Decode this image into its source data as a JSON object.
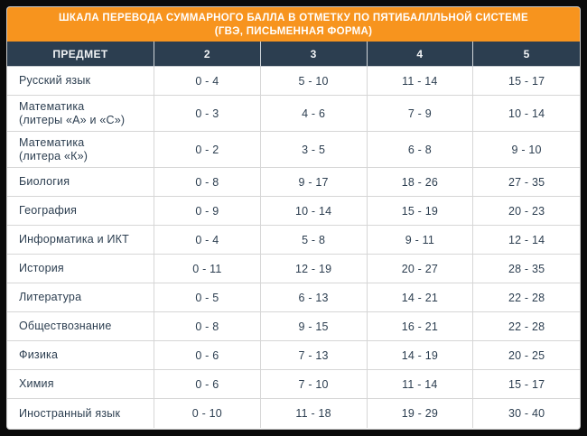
{
  "banner": {
    "line1": "ШКАЛА ПЕРЕВОДА СУММАРНОГО БАЛЛА В ОТМЕТКУ ПО ПЯТИБАЛЛЛЬНОЙ СИСТЕМЕ",
    "line2": "(ГВЭ, ПИСЬМЕННАЯ ФОРМА)"
  },
  "colors": {
    "banner_bg": "#F7941E",
    "header_bg": "#2C3E50",
    "body_text": "#2C3E50",
    "divider": "#D6D6D6",
    "frame": "#0B0B0B",
    "row_bg": "#FFFFFF"
  },
  "table": {
    "columns": [
      "ПРЕДМЕТ",
      "2",
      "3",
      "4",
      "5"
    ],
    "rows": [
      {
        "subject_lines": [
          "Русский язык"
        ],
        "scores": [
          "0 - 4",
          "5 - 10",
          "11 - 14",
          "15 - 17"
        ]
      },
      {
        "subject_lines": [
          "Математика",
          "(литеры «А» и «С»)"
        ],
        "scores": [
          "0 - 3",
          "4 - 6",
          "7 - 9",
          "10 - 14"
        ]
      },
      {
        "subject_lines": [
          "Математика",
          "(литера «К»)"
        ],
        "scores": [
          "0 - 2",
          "3 - 5",
          "6 - 8",
          "9 - 10"
        ]
      },
      {
        "subject_lines": [
          "Биология"
        ],
        "scores": [
          "0 - 8",
          "9 - 17",
          "18 - 26",
          "27 - 35"
        ]
      },
      {
        "subject_lines": [
          "География"
        ],
        "scores": [
          "0 - 9",
          "10 - 14",
          "15 - 19",
          "20 - 23"
        ]
      },
      {
        "subject_lines": [
          "Информатика и ИКТ"
        ],
        "scores": [
          "0 - 4",
          "5 - 8",
          "9 - 11",
          "12 - 14"
        ]
      },
      {
        "subject_lines": [
          "История"
        ],
        "scores": [
          "0 - 11",
          "12 - 19",
          "20 - 27",
          "28 - 35"
        ]
      },
      {
        "subject_lines": [
          "Литература"
        ],
        "scores": [
          "0 - 5",
          "6 - 13",
          "14 - 21",
          "22 - 28"
        ]
      },
      {
        "subject_lines": [
          "Обществознание"
        ],
        "scores": [
          "0 - 8",
          "9 - 15",
          "16 - 21",
          "22 - 28"
        ]
      },
      {
        "subject_lines": [
          "Физика"
        ],
        "scores": [
          "0 - 6",
          "7 - 13",
          "14 - 19",
          "20 - 25"
        ]
      },
      {
        "subject_lines": [
          "Химия"
        ],
        "scores": [
          "0 - 6",
          "7 - 10",
          "11 - 14",
          "15 - 17"
        ]
      },
      {
        "subject_lines": [
          "Иностранный язык"
        ],
        "scores": [
          "0 - 10",
          "11 - 18",
          "19 - 29",
          "30 - 40"
        ]
      }
    ]
  },
  "chart_data": {
    "type": "table",
    "title": "ШКАЛА ПЕРЕВОДА СУММАРНОГО БАЛЛА В ОТМЕТКУ ПО ПЯТИБАЛЛЛЬНОЙ СИСТЕМЕ (ГВЭ, ПИСЬМЕННАЯ ФОРМА)",
    "columns": [
      "ПРЕДМЕТ",
      "2",
      "3",
      "4",
      "5"
    ],
    "rows": [
      [
        "Русский язык",
        "0 - 4",
        "5 - 10",
        "11 - 14",
        "15 - 17"
      ],
      [
        "Математика (литеры «А» и «С»)",
        "0 - 3",
        "4 - 6",
        "7 - 9",
        "10 - 14"
      ],
      [
        "Математика (литера «К»)",
        "0 - 2",
        "3 - 5",
        "6 - 8",
        "9 - 10"
      ],
      [
        "Биология",
        "0 - 8",
        "9 - 17",
        "18 - 26",
        "27 - 35"
      ],
      [
        "География",
        "0 - 9",
        "10 - 14",
        "15 - 19",
        "20 - 23"
      ],
      [
        "Информатика и ИКТ",
        "0 - 4",
        "5 - 8",
        "9 - 11",
        "12 - 14"
      ],
      [
        "История",
        "0 - 11",
        "12 - 19",
        "20 - 27",
        "28 - 35"
      ],
      [
        "Литература",
        "0 - 5",
        "6 - 13",
        "14 - 21",
        "22 - 28"
      ],
      [
        "Обществознание",
        "0 - 8",
        "9 - 15",
        "16 - 21",
        "22 - 28"
      ],
      [
        "Физика",
        "0 - 6",
        "7 - 13",
        "14 - 19",
        "20 - 25"
      ],
      [
        "Химия",
        "0 - 6",
        "7 - 10",
        "11 - 14",
        "15 - 17"
      ],
      [
        "Иностранный язык",
        "0 - 10",
        "11 - 18",
        "19 - 29",
        "30 - 40"
      ]
    ]
  }
}
